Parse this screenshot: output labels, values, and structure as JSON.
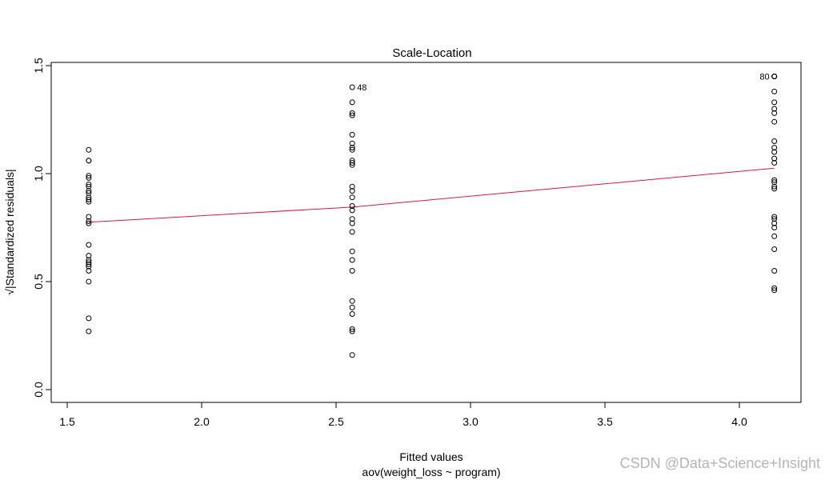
{
  "chart_data": {
    "type": "scatter",
    "title": "Scale-Location",
    "xlabel": "Fitted values",
    "xlabel2": "aov(weight_loss ~ program)",
    "ylabel": "√|Standardized residuals|",
    "xlim": [
      1.5,
      4.2
    ],
    "ylim": [
      0.0,
      1.5
    ],
    "xticks": [
      "1.5",
      "2.0",
      "2.5",
      "3.0",
      "3.5",
      "4.0"
    ],
    "yticks": [
      "0.0",
      "0.5",
      "1.0",
      "1.5"
    ],
    "grid": false,
    "series": [
      {
        "x": 1.58,
        "y": [
          1.11,
          1.06,
          1.06,
          0.99,
          0.98,
          0.95,
          0.94,
          0.92,
          0.91,
          0.89,
          0.88,
          0.87,
          0.8,
          0.78,
          0.77,
          0.67,
          0.62,
          0.6,
          0.59,
          0.58,
          0.57,
          0.55,
          0.5,
          0.33,
          0.27
        ]
      },
      {
        "x": 2.56,
        "y": [
          1.4,
          1.33,
          1.28,
          1.27,
          1.18,
          1.14,
          1.12,
          1.11,
          1.06,
          1.05,
          1.04,
          0.94,
          0.92,
          0.89,
          0.85,
          0.83,
          0.79,
          0.77,
          0.73,
          0.64,
          0.6,
          0.55,
          0.41,
          0.38,
          0.35,
          0.28,
          0.27,
          0.16
        ]
      },
      {
        "x": 4.13,
        "y": [
          1.45,
          1.45,
          1.45,
          1.45,
          1.38,
          1.33,
          1.3,
          1.28,
          1.24,
          1.15,
          1.12,
          1.1,
          1.07,
          1.05,
          0.97,
          0.96,
          0.94,
          0.93,
          0.8,
          0.79,
          0.77,
          0.75,
          0.71,
          0.65,
          0.55,
          0.47,
          0.46
        ]
      }
    ],
    "smooth_line": {
      "x": [
        1.58,
        2.56,
        4.13
      ],
      "y": [
        0.775,
        0.845,
        1.025
      ],
      "color": "#d7193e"
    },
    "annotations": [
      {
        "text": "48",
        "x": 2.56,
        "y": 1.4,
        "pos": "right"
      },
      {
        "text": "80",
        "x": 4.13,
        "y": 1.45,
        "pos": "left"
      }
    ]
  },
  "watermark": "CSDN @Data+Science+Insight"
}
